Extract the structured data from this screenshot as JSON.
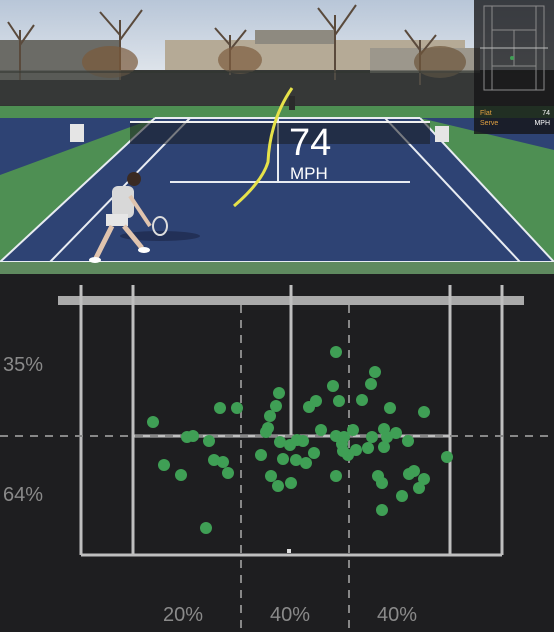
{
  "overlay": {
    "speed_value": "74",
    "speed_unit": "MPH"
  },
  "minimap": {
    "rows": [
      {
        "label": "Flat",
        "value": "74"
      },
      {
        "label": "Serve",
        "value": "MPH"
      }
    ]
  },
  "chart_data": {
    "type": "scatter",
    "title": "",
    "xlabel": "",
    "ylabel": "",
    "zone_labels": {
      "left_top": "35%",
      "left_bottom": "64%",
      "bottom_left": "20%",
      "bottom_center": "40%",
      "bottom_right": "40%"
    },
    "grid": false,
    "series": [
      {
        "color": "#3f9f55",
        "points": [
          [
            153,
            422
          ],
          [
            164,
            465
          ],
          [
            181,
            475
          ],
          [
            187,
            437
          ],
          [
            193,
            436
          ],
          [
            209,
            441
          ],
          [
            214,
            460
          ],
          [
            223,
            462
          ],
          [
            228,
            473
          ],
          [
            206,
            528
          ],
          [
            220,
            408
          ],
          [
            237,
            408
          ],
          [
            261,
            455
          ],
          [
            266,
            432
          ],
          [
            268,
            428
          ],
          [
            270,
            416
          ],
          [
            276,
            406
          ],
          [
            279,
            393
          ],
          [
            280,
            442
          ],
          [
            283,
            459
          ],
          [
            271,
            476
          ],
          [
            278,
            486
          ],
          [
            291,
            483
          ],
          [
            296,
            460
          ],
          [
            303,
            441
          ],
          [
            306,
            463
          ],
          [
            309,
            407
          ],
          [
            314,
            453
          ],
          [
            316,
            401
          ],
          [
            321,
            430
          ],
          [
            290,
            445
          ],
          [
            297,
            440
          ],
          [
            336,
            352
          ],
          [
            333,
            386
          ],
          [
            336,
            476
          ],
          [
            339,
            401
          ],
          [
            336,
            436
          ],
          [
            342,
            444
          ],
          [
            344,
            437
          ],
          [
            348,
            455
          ],
          [
            343,
            451
          ],
          [
            353,
            430
          ],
          [
            356,
            450
          ],
          [
            362,
            400
          ],
          [
            368,
            448
          ],
          [
            371,
            384
          ],
          [
            375,
            372
          ],
          [
            372,
            437
          ],
          [
            384,
            429
          ],
          [
            387,
            437
          ],
          [
            390,
            408
          ],
          [
            384,
            447
          ],
          [
            378,
            476
          ],
          [
            382,
            483
          ],
          [
            382,
            510
          ],
          [
            396,
            433
          ],
          [
            408,
            441
          ],
          [
            414,
            471
          ],
          [
            409,
            474
          ],
          [
            402,
            496
          ],
          [
            419,
            488
          ],
          [
            424,
            479
          ],
          [
            424,
            412
          ],
          [
            447,
            457
          ]
        ]
      }
    ]
  }
}
